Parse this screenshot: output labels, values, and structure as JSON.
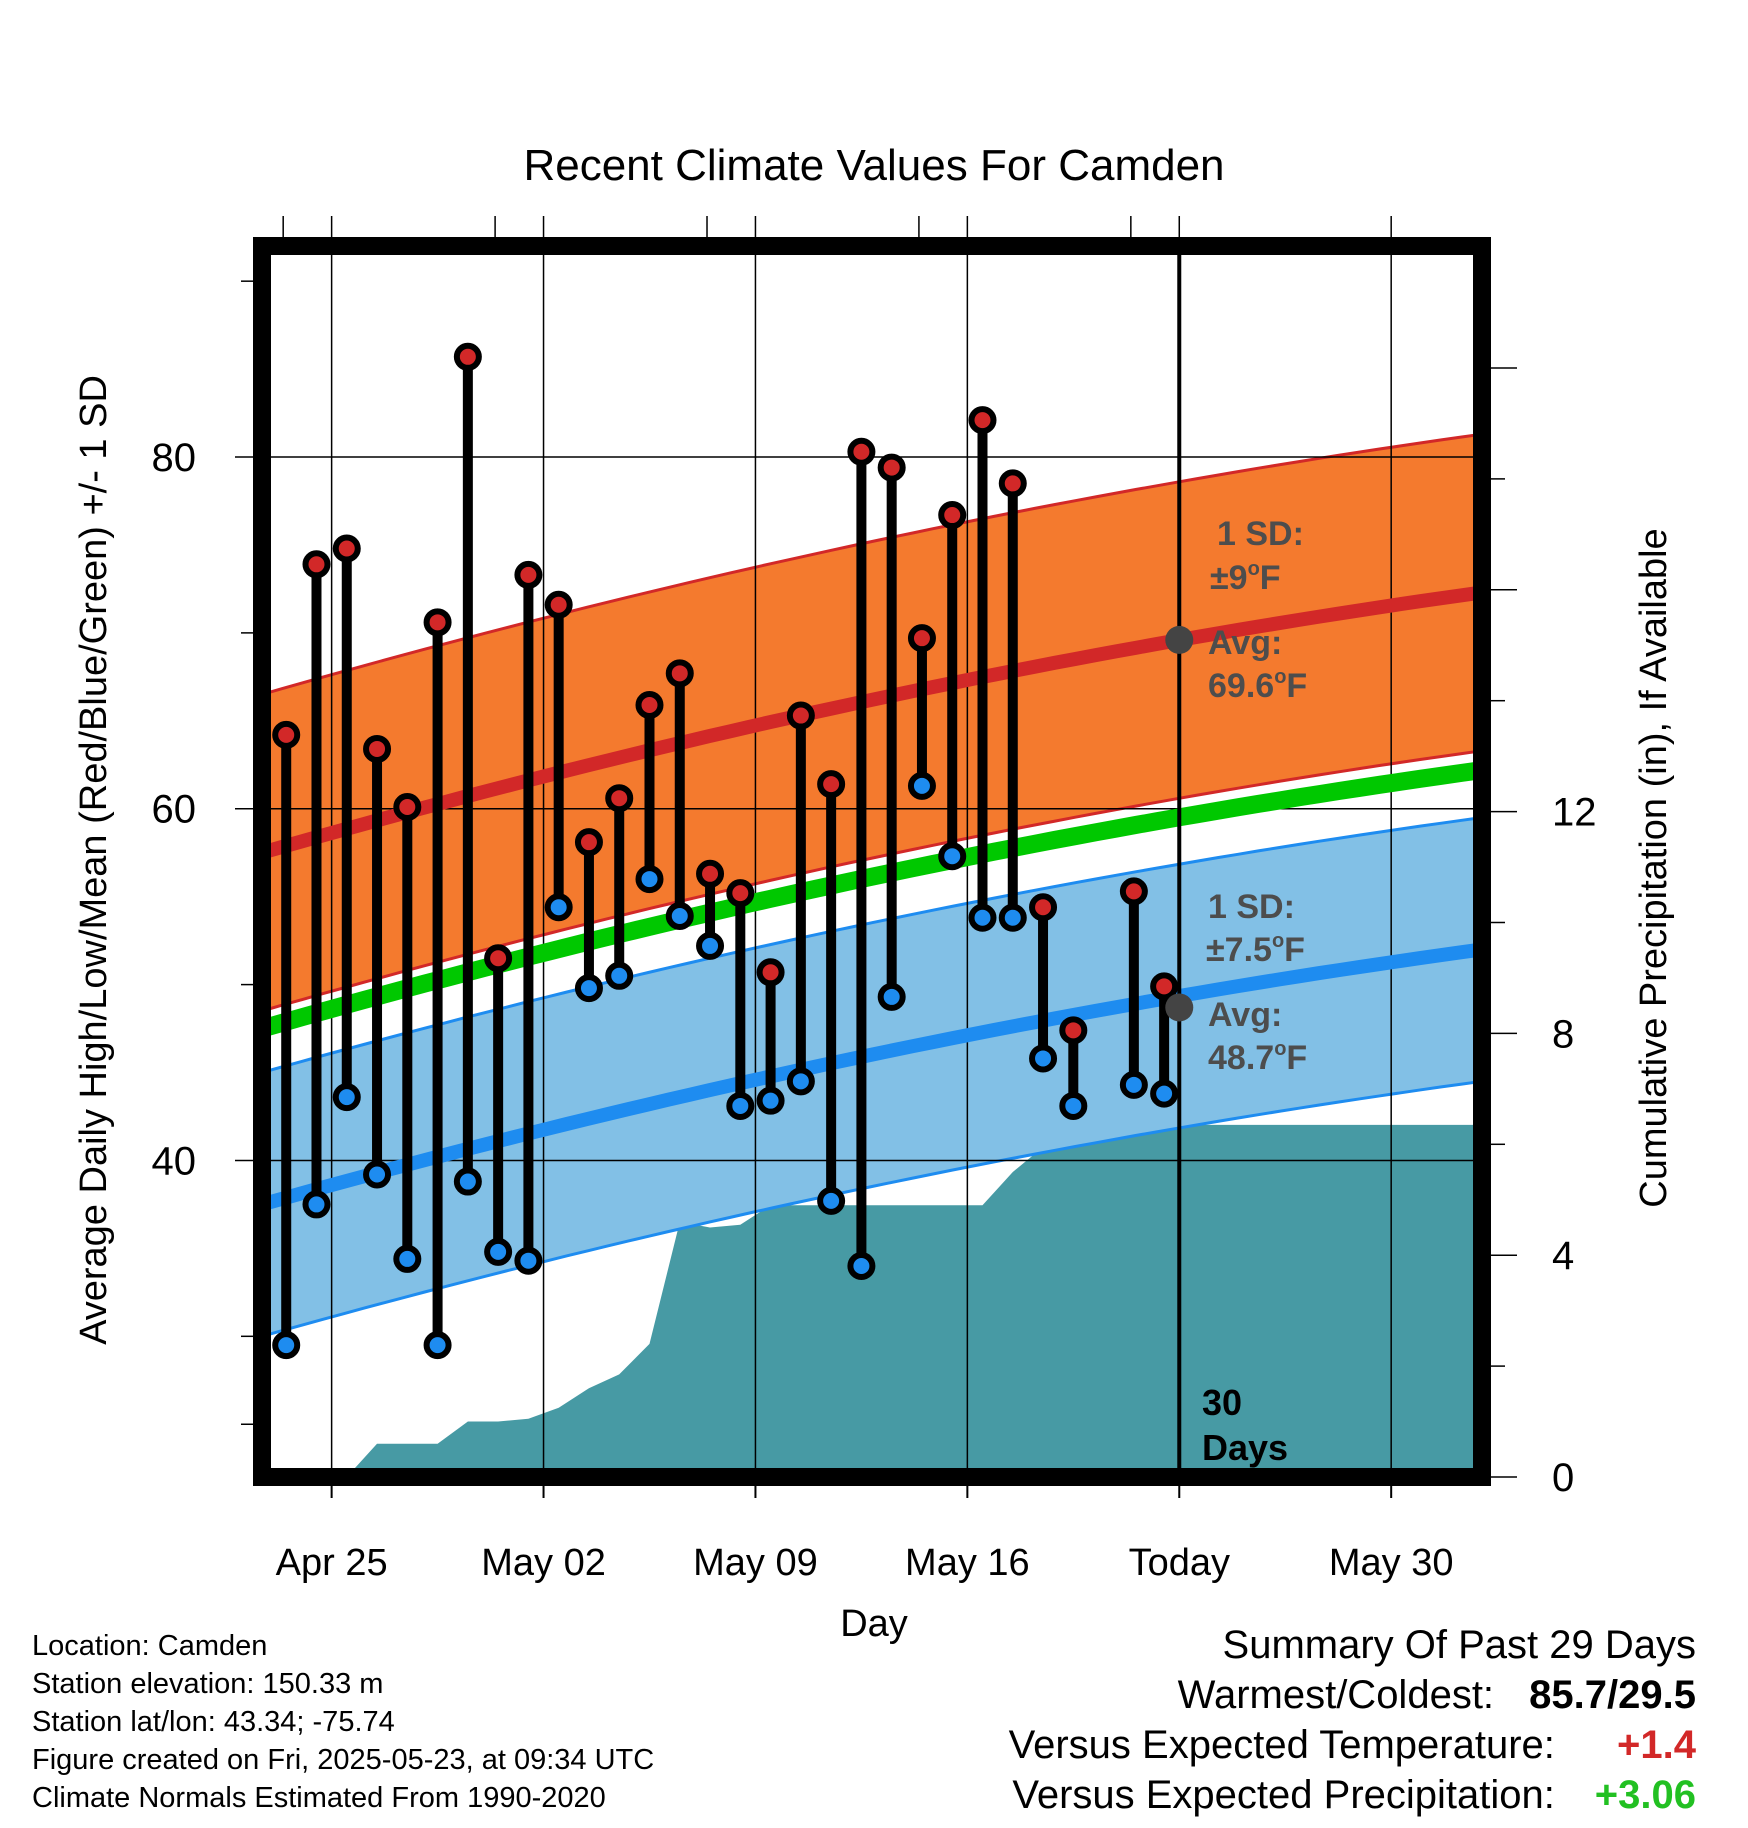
{
  "chart_data": {
    "type": "line",
    "title": "Recent Climate Values For Camden",
    "xlabel": "Day",
    "ylabel_left": "Average Daily High/Low/Mean (Red/Blue/Green) +/- 1 SD",
    "ylabel_right": "Cumulative Precipitation (in), If Available",
    "x_ticks": [
      "Apr 25",
      "May 02",
      "May 09",
      "May 16",
      "Today",
      "May 30"
    ],
    "y_left_ticks": [
      "40",
      "60",
      "80"
    ],
    "y_right_ticks": [
      "0",
      "4",
      "8",
      "12"
    ],
    "ylim_left": [
      22,
      92
    ],
    "ylim_right": [
      0,
      22.2
    ],
    "grid": true,
    "days_label": [
      "30",
      "Days"
    ],
    "colors": {
      "high_band": "#f47a2e",
      "high_line": "#d22828",
      "low_band": "#82c0e6",
      "low_line": "#1e8cf0",
      "mean_line": "#00c800",
      "precip": "#479aa4",
      "high_dot": "#d22828",
      "low_dot": "#1e8cf0",
      "avg_dot": "#444444",
      "annotation": "#4d4d4d"
    },
    "normal_high": {
      "start": 57.5,
      "end": 72.3,
      "sd_label": [
        "1 SD:",
        "±9°F"
      ],
      "avg_label": [
        "Avg:",
        "69.6°F"
      ],
      "avg_today": 69.6
    },
    "normal_low": {
      "start": 37.5,
      "end": 52.0,
      "sd_label": [
        "1 SD:",
        "±7.5°F"
      ],
      "avg_label": [
        "Avg:",
        "48.7°F"
      ],
      "avg_today": 48.7
    },
    "normal_mean": {
      "start": 47.5,
      "end": 62.2
    },
    "daily": [
      {
        "date": "Apr 23",
        "high": 64.2,
        "low": 29.5
      },
      {
        "date": "Apr 24",
        "high": 73.9,
        "low": 37.5
      },
      {
        "date": "Apr 25",
        "high": 74.8,
        "low": 43.6
      },
      {
        "date": "Apr 26",
        "high": 63.4,
        "low": 39.2
      },
      {
        "date": "Apr 27",
        "high": 60.1,
        "low": 34.4
      },
      {
        "date": "Apr 28",
        "high": 70.6,
        "low": 29.5
      },
      {
        "date": "Apr 29",
        "high": 85.7,
        "low": 38.8
      },
      {
        "date": "Apr 30",
        "high": 51.5,
        "low": 34.8
      },
      {
        "date": "May 01",
        "high": 73.3,
        "low": 34.3
      },
      {
        "date": "May 02",
        "high": 71.6,
        "low": 54.4
      },
      {
        "date": "May 03",
        "high": 58.1,
        "low": 49.8
      },
      {
        "date": "May 04",
        "high": 60.6,
        "low": 50.5
      },
      {
        "date": "May 05",
        "high": 65.9,
        "low": 56.0
      },
      {
        "date": "May 06",
        "high": 67.7,
        "low": 53.9
      },
      {
        "date": "May 07",
        "high": 56.3,
        "low": 52.2
      },
      {
        "date": "May 08",
        "high": 55.2,
        "low": 43.1
      },
      {
        "date": "May 09",
        "high": 50.7,
        "low": 43.4
      },
      {
        "date": "May 10",
        "high": 65.3,
        "low": 44.5
      },
      {
        "date": "May 11",
        "high": 61.4,
        "low": 37.7
      },
      {
        "date": "May 12",
        "high": 80.3,
        "low": 34.0
      },
      {
        "date": "May 13",
        "high": 79.4,
        "low": 49.3
      },
      {
        "date": "May 14",
        "high": 69.7,
        "low": 61.3
      },
      {
        "date": "May 15",
        "high": 76.7,
        "low": 57.3
      },
      {
        "date": "May 16",
        "high": 82.1,
        "low": 53.8
      },
      {
        "date": "May 17",
        "high": 78.5,
        "low": 53.8
      },
      {
        "date": "May 18",
        "high": 54.4,
        "low": 45.8
      },
      {
        "date": "May 19",
        "high": 47.4,
        "low": 43.1
      },
      {
        "date": "May 21",
        "high": 55.3,
        "low": 44.3
      },
      {
        "date": "May 22",
        "high": 49.9,
        "low": 43.8
      }
    ],
    "precip_cumulative": [
      {
        "x": 0,
        "y": 0.0
      },
      {
        "x": 1,
        "y": 0.0
      },
      {
        "x": 2,
        "y": 0.0
      },
      {
        "x": 3,
        "y": 0.6
      },
      {
        "x": 4,
        "y": 0.6
      },
      {
        "x": 5,
        "y": 0.6
      },
      {
        "x": 6,
        "y": 1.0
      },
      {
        "x": 7,
        "y": 1.0
      },
      {
        "x": 8,
        "y": 1.05
      },
      {
        "x": 9,
        "y": 1.25
      },
      {
        "x": 10,
        "y": 1.6
      },
      {
        "x": 11,
        "y": 1.85
      },
      {
        "x": 12,
        "y": 2.4
      },
      {
        "x": 13,
        "y": 4.6
      },
      {
        "x": 14,
        "y": 4.5
      },
      {
        "x": 15,
        "y": 4.55
      },
      {
        "x": 16,
        "y": 4.9
      },
      {
        "x": 17,
        "y": 4.9
      },
      {
        "x": 18,
        "y": 4.9
      },
      {
        "x": 19,
        "y": 4.9
      },
      {
        "x": 20,
        "y": 4.9
      },
      {
        "x": 21,
        "y": 4.9
      },
      {
        "x": 22,
        "y": 4.9
      },
      {
        "x": 23,
        "y": 4.9
      },
      {
        "x": 24,
        "y": 5.5
      },
      {
        "x": 25,
        "y": 5.95
      },
      {
        "x": 26,
        "y": 5.95
      },
      {
        "x": 27,
        "y": 6.05
      },
      {
        "x": 28,
        "y": 6.4
      },
      {
        "x": 29,
        "y": 6.35
      },
      {
        "x": 39.5,
        "y": 6.35
      }
    ],
    "x_range_days": [
      -0.8,
      39.5
    ],
    "x_tick_days": [
      1.5,
      8.5,
      15.5,
      22.5,
      29.5,
      36.5
    ],
    "today_day": 29.5
  },
  "info": [
    "Location: Camden",
    "Station elevation: 150.33 m",
    "Station lat/lon: 43.34; -75.74",
    "Figure created on Fri, 2025-05-23, at 09:34 UTC",
    "Climate Normals Estimated From 1990-2020"
  ],
  "summary": {
    "title": "Summary Of Past 29 Days",
    "warmest_label": "Warmest/Coldest:",
    "warmest_value": "85.7/29.5",
    "temp_label": "Versus Expected Temperature:",
    "temp_value": "+1.4",
    "temp_color": "#d22828",
    "precip_label": "Versus Expected Precipitation:",
    "precip_value": "+3.06",
    "precip_color": "#22c022"
  }
}
